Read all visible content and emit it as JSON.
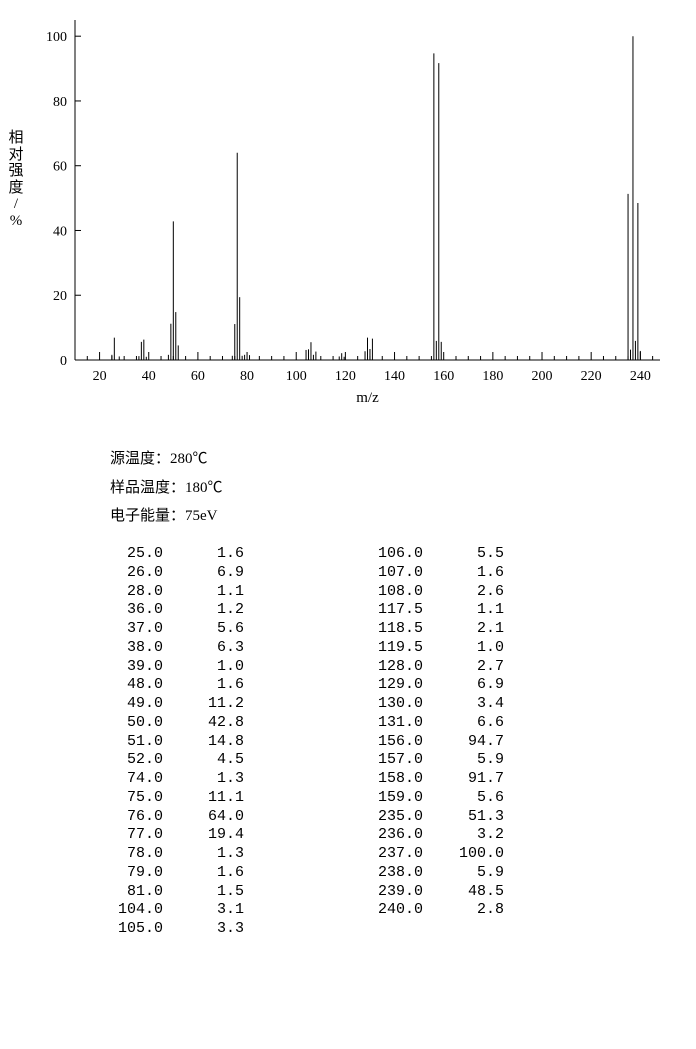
{
  "chart": {
    "type": "mass-spectrum",
    "xlabel": "m/z",
    "ylabel_lines": [
      "相",
      "对",
      "强",
      "度",
      "/",
      "%"
    ],
    "xlim": [
      10,
      248
    ],
    "ylim": [
      0,
      105
    ],
    "xticks": [
      20,
      40,
      60,
      80,
      100,
      120,
      140,
      160,
      180,
      200,
      220,
      240
    ],
    "yticks": [
      0,
      20,
      40,
      60,
      80,
      100
    ],
    "minor_x_step": 5,
    "axis_color": "#000000",
    "background": "#ffffff",
    "line_color": "#000000",
    "label_fontsize": 15,
    "tick_fontsize": 14,
    "peaks": [
      {
        "mz": 25.0,
        "int": 1.6
      },
      {
        "mz": 26.0,
        "int": 6.9
      },
      {
        "mz": 28.0,
        "int": 1.1
      },
      {
        "mz": 36.0,
        "int": 1.2
      },
      {
        "mz": 37.0,
        "int": 5.6
      },
      {
        "mz": 38.0,
        "int": 6.3
      },
      {
        "mz": 39.0,
        "int": 1.0
      },
      {
        "mz": 48.0,
        "int": 1.6
      },
      {
        "mz": 49.0,
        "int": 11.2
      },
      {
        "mz": 50.0,
        "int": 42.8
      },
      {
        "mz": 51.0,
        "int": 14.8
      },
      {
        "mz": 52.0,
        "int": 4.5
      },
      {
        "mz": 74.0,
        "int": 1.3
      },
      {
        "mz": 75.0,
        "int": 11.1
      },
      {
        "mz": 76.0,
        "int": 64.0
      },
      {
        "mz": 77.0,
        "int": 19.4
      },
      {
        "mz": 78.0,
        "int": 1.3
      },
      {
        "mz": 79.0,
        "int": 1.6
      },
      {
        "mz": 81.0,
        "int": 1.5
      },
      {
        "mz": 104.0,
        "int": 3.1
      },
      {
        "mz": 105.0,
        "int": 3.3
      },
      {
        "mz": 106.0,
        "int": 5.5
      },
      {
        "mz": 107.0,
        "int": 1.6
      },
      {
        "mz": 108.0,
        "int": 2.6
      },
      {
        "mz": 117.5,
        "int": 1.1
      },
      {
        "mz": 118.5,
        "int": 2.1
      },
      {
        "mz": 119.5,
        "int": 1.0
      },
      {
        "mz": 128.0,
        "int": 2.7
      },
      {
        "mz": 129.0,
        "int": 6.9
      },
      {
        "mz": 130.0,
        "int": 3.4
      },
      {
        "mz": 131.0,
        "int": 6.6
      },
      {
        "mz": 156.0,
        "int": 94.7
      },
      {
        "mz": 157.0,
        "int": 5.9
      },
      {
        "mz": 158.0,
        "int": 91.7
      },
      {
        "mz": 159.0,
        "int": 5.6
      },
      {
        "mz": 235.0,
        "int": 51.3
      },
      {
        "mz": 236.0,
        "int": 3.2
      },
      {
        "mz": 237.0,
        "int": 100.0
      },
      {
        "mz": 238.0,
        "int": 5.9
      },
      {
        "mz": 239.0,
        "int": 48.5
      },
      {
        "mz": 240.0,
        "int": 2.8
      }
    ]
  },
  "meta": {
    "line1_label": "源温度：",
    "line1_value": "280℃",
    "line2_label": "样品温度：",
    "line2_value": "180℃",
    "line3_label": "电子能量：",
    "line3_value": "75eV"
  },
  "table": {
    "left": [
      [
        "25.0",
        "1.6"
      ],
      [
        "26.0",
        "6.9"
      ],
      [
        "28.0",
        "1.1"
      ],
      [
        "36.0",
        "1.2"
      ],
      [
        "37.0",
        "5.6"
      ],
      [
        "38.0",
        "6.3"
      ],
      [
        "39.0",
        "1.0"
      ],
      [
        "48.0",
        "1.6"
      ],
      [
        "49.0",
        "11.2"
      ],
      [
        "50.0",
        "42.8"
      ],
      [
        "51.0",
        "14.8"
      ],
      [
        "52.0",
        "4.5"
      ],
      [
        "74.0",
        "1.3"
      ],
      [
        "75.0",
        "11.1"
      ],
      [
        "76.0",
        "64.0"
      ],
      [
        "77.0",
        "19.4"
      ],
      [
        "78.0",
        "1.3"
      ],
      [
        "79.0",
        "1.6"
      ],
      [
        "81.0",
        "1.5"
      ],
      [
        "104.0",
        "3.1"
      ],
      [
        "105.0",
        "3.3"
      ]
    ],
    "right": [
      [
        "106.0",
        "5.5"
      ],
      [
        "107.0",
        "1.6"
      ],
      [
        "108.0",
        "2.6"
      ],
      [
        "117.5",
        "1.1"
      ],
      [
        "118.5",
        "2.1"
      ],
      [
        "119.5",
        "1.0"
      ],
      [
        "128.0",
        "2.7"
      ],
      [
        "129.0",
        "6.9"
      ],
      [
        "130.0",
        "3.4"
      ],
      [
        "131.0",
        "6.6"
      ],
      [
        "156.0",
        "94.7"
      ],
      [
        "157.0",
        "5.9"
      ],
      [
        "158.0",
        "91.7"
      ],
      [
        "159.0",
        "5.6"
      ],
      [
        "235.0",
        "51.3"
      ],
      [
        "236.0",
        "3.2"
      ],
      [
        "237.0",
        "100.0"
      ],
      [
        "238.0",
        "5.9"
      ],
      [
        "239.0",
        "48.5"
      ],
      [
        "240.0",
        "2.8"
      ]
    ]
  }
}
